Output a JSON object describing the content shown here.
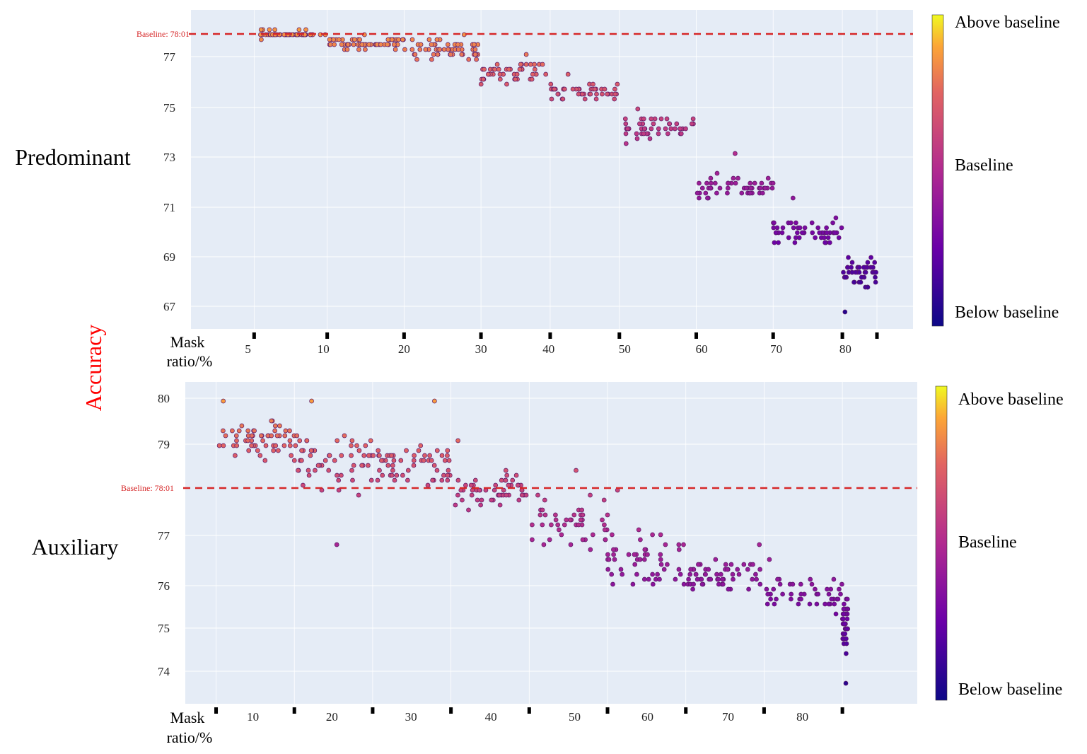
{
  "figure": {
    "y_axis_title": "Accuracy",
    "y_axis_title_color": "#ff0000",
    "plot_bg": "#e5ecf6",
    "baseline_color": "#d62728"
  },
  "chart_data": [
    {
      "type": "scatter",
      "row_label": "Predominant",
      "xlabel_line1": "Mask",
      "xlabel_line2": "ratio/%",
      "baseline_value": 78.0,
      "baseline_label": "Baseline: 78:01",
      "ylim": [
        66.2,
        78.9
      ],
      "y_ticks": [
        67,
        69,
        71,
        73,
        75,
        77
      ],
      "y_tick_labels": [
        "67",
        "69",
        "71",
        "73",
        "75",
        "77"
      ],
      "xlim": [
        0,
        86
      ],
      "x_tick_labels": [
        "5",
        "10",
        "20",
        "30",
        "40",
        "50",
        "60",
        "70",
        "80"
      ],
      "x_tick_positions": [
        4.2,
        14.0,
        24.5,
        34.5,
        43.3,
        53.2,
        63.2,
        72.9,
        81.9
      ],
      "x_markers": [
        5,
        14.5,
        24.5,
        34.5,
        43.5,
        52.5,
        62.5,
        72.5,
        81.5,
        86
      ],
      "groups": [
        {
          "x": [
            5,
            14.5
          ],
          "mean": 77.99,
          "spread": 0.12,
          "n": 52,
          "max": 78.25
        },
        {
          "x": [
            14.5,
            24.5
          ],
          "mean": 77.6,
          "spread": 0.18,
          "n": 55,
          "max": 77.9
        },
        {
          "x": [
            24.5,
            34.5
          ],
          "mean": 77.3,
          "spread": 0.38,
          "n": 55,
          "max": 77.9
        },
        {
          "x": [
            34.5,
            43.5
          ],
          "mean": 76.4,
          "spread": 0.38,
          "n": 45,
          "max": 77.2
        },
        {
          "x": [
            43.5,
            52.5
          ],
          "mean": 75.6,
          "spread": 0.32,
          "n": 45,
          "max": 76.3
        },
        {
          "x": [
            52.5,
            62.5
          ],
          "mean": 74.2,
          "spread": 0.45,
          "n": 45,
          "max": 74.9
        },
        {
          "x": [
            62.5,
            72.5
          ],
          "mean": 71.8,
          "spread": 0.42,
          "n": 50,
          "max": 73.2
        },
        {
          "x": [
            72.5,
            81.5
          ],
          "mean": 70.0,
          "spread": 0.45,
          "n": 50,
          "max": 71.4
        },
        {
          "x": [
            81.5,
            86
          ],
          "mean": 68.4,
          "spread": 0.5,
          "n": 45,
          "min": 66.8
        }
      ]
    },
    {
      "type": "scatter",
      "row_label": "Auxiliary",
      "xlabel_line1": "Mask",
      "xlabel_line2": "ratio/%",
      "baseline_value": 78.0,
      "baseline_label": "Baseline: 78:01",
      "ylim": [
        73.3,
        80.3
      ],
      "y_ticks": [
        74,
        75,
        76,
        77,
        79,
        80
      ],
      "y_tick_labels": [
        "74",
        "75",
        "76",
        "77",
        "79",
        "80"
      ],
      "xlim": [
        0,
        86
      ],
      "x_tick_labels": [
        "10",
        "20",
        "30",
        "40",
        "50",
        "60",
        "70",
        "80"
      ],
      "x_tick_positions": [
        5.2,
        15.3,
        25.4,
        35.6,
        46.3,
        55.6,
        65.9,
        75.4
      ],
      "x_markers": [
        0.5,
        10.5,
        20.5,
        30.5,
        40.5,
        50.5,
        60.5,
        70.5,
        80.5
      ],
      "groups": [
        {
          "x": [
            0.5,
            10.5
          ],
          "mean": 79.1,
          "spread": 0.38,
          "n": 55,
          "max": 79.95
        },
        {
          "x": [
            10.5,
            20.5
          ],
          "mean": 78.6,
          "spread": 0.55,
          "n": 55,
          "max": 79.95,
          "min": 76.8
        },
        {
          "x": [
            20.5,
            30.5
          ],
          "mean": 78.5,
          "spread": 0.45,
          "n": 55,
          "max": 79.95
        },
        {
          "x": [
            30.5,
            40.5
          ],
          "mean": 77.9,
          "spread": 0.38,
          "n": 50,
          "max": 79.1
        },
        {
          "x": [
            40.5,
            50.5
          ],
          "mean": 77.2,
          "spread": 0.5,
          "n": 45,
          "max": 78.4
        },
        {
          "x": [
            50.5,
            60.5
          ],
          "mean": 76.5,
          "spread": 0.55,
          "n": 50,
          "max": 78.0
        },
        {
          "x": [
            60.5,
            70.5
          ],
          "mean": 76.2,
          "spread": 0.3,
          "n": 55,
          "max": 76.8
        },
        {
          "x": [
            70.5,
            80.5
          ],
          "mean": 75.8,
          "spread": 0.35,
          "n": 45,
          "max": 76.5
        },
        {
          "x": [
            80.5,
            81.2
          ],
          "mean": 75.1,
          "spread": 0.5,
          "n": 40,
          "min": 73.7
        }
      ]
    }
  ],
  "colorbars": [
    {
      "top_label": "Above baseline",
      "mid_label": "Baseline",
      "bottom_label": "Below baseline"
    },
    {
      "top_label": "Above baseline",
      "mid_label": "Baseline",
      "bottom_label": "Below baseline"
    }
  ]
}
